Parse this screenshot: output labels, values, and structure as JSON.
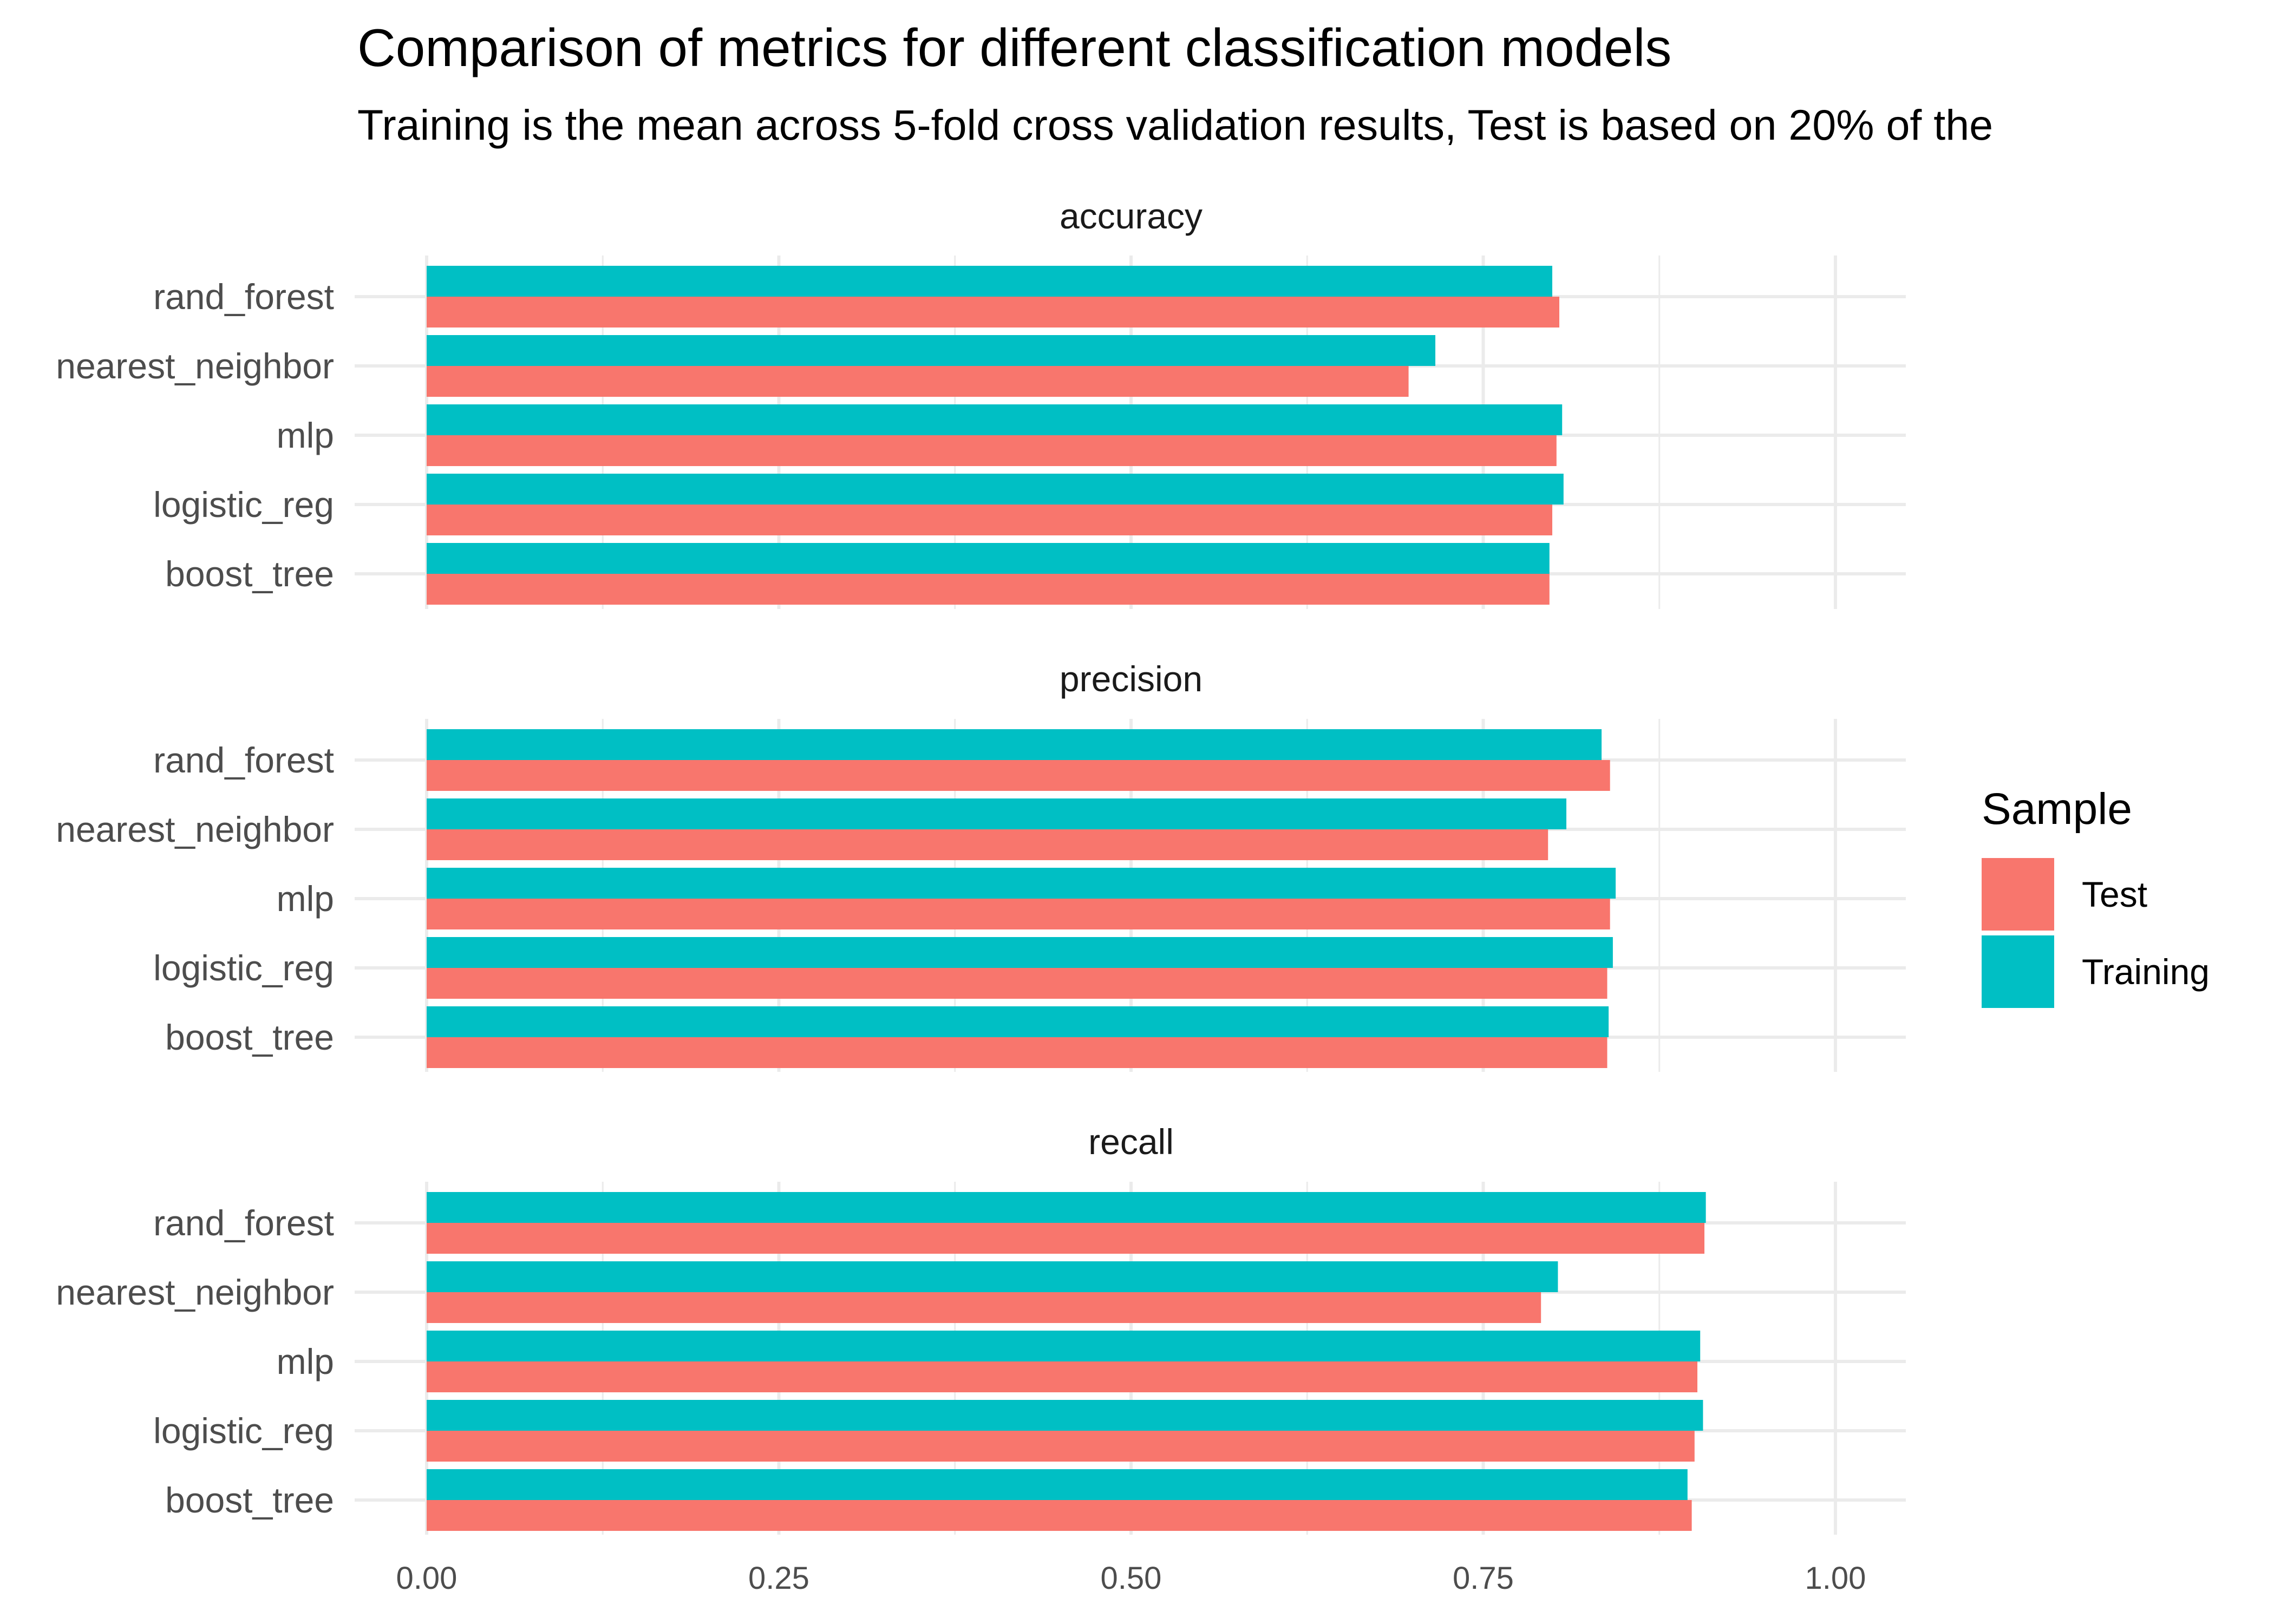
{
  "title": "Comparison of metrics for different classification models",
  "subtitle": "Training is the mean across 5-fold cross validation results, Test is based on 20% of the",
  "legend": {
    "title": "Sample",
    "items": [
      {
        "label": "Test",
        "color": "#F8766D"
      },
      {
        "label": "Training",
        "color": "#00BFC4"
      }
    ],
    "placement": "right"
  },
  "chart_data": {
    "type": "bar",
    "orientation": "horizontal",
    "facets": [
      "accuracy",
      "precision",
      "recall"
    ],
    "categories": [
      "rand_forest",
      "nearest_neighbor",
      "mlp",
      "logistic_reg",
      "boost_tree"
    ],
    "x_ticks": [
      "0.00",
      "0.25",
      "0.50",
      "0.75",
      "1.00"
    ],
    "xlim": [
      0,
      1.0
    ],
    "grid": true,
    "panels": [
      {
        "metric": "accuracy",
        "series": [
          {
            "name": "Training",
            "values": [
              0.799,
              0.716,
              0.806,
              0.807,
              0.797
            ]
          },
          {
            "name": "Test",
            "values": [
              0.804,
              0.697,
              0.802,
              0.799,
              0.797
            ]
          }
        ]
      },
      {
        "metric": "precision",
        "series": [
          {
            "name": "Training",
            "values": [
              0.834,
              0.809,
              0.844,
              0.842,
              0.839
            ]
          },
          {
            "name": "Test",
            "values": [
              0.84,
              0.796,
              0.84,
              0.838,
              0.838
            ]
          }
        ]
      },
      {
        "metric": "recall",
        "series": [
          {
            "name": "Training",
            "values": [
              0.908,
              0.803,
              0.904,
              0.906,
              0.895
            ]
          },
          {
            "name": "Test",
            "values": [
              0.907,
              0.791,
              0.902,
              0.9,
              0.898
            ]
          }
        ]
      }
    ]
  }
}
